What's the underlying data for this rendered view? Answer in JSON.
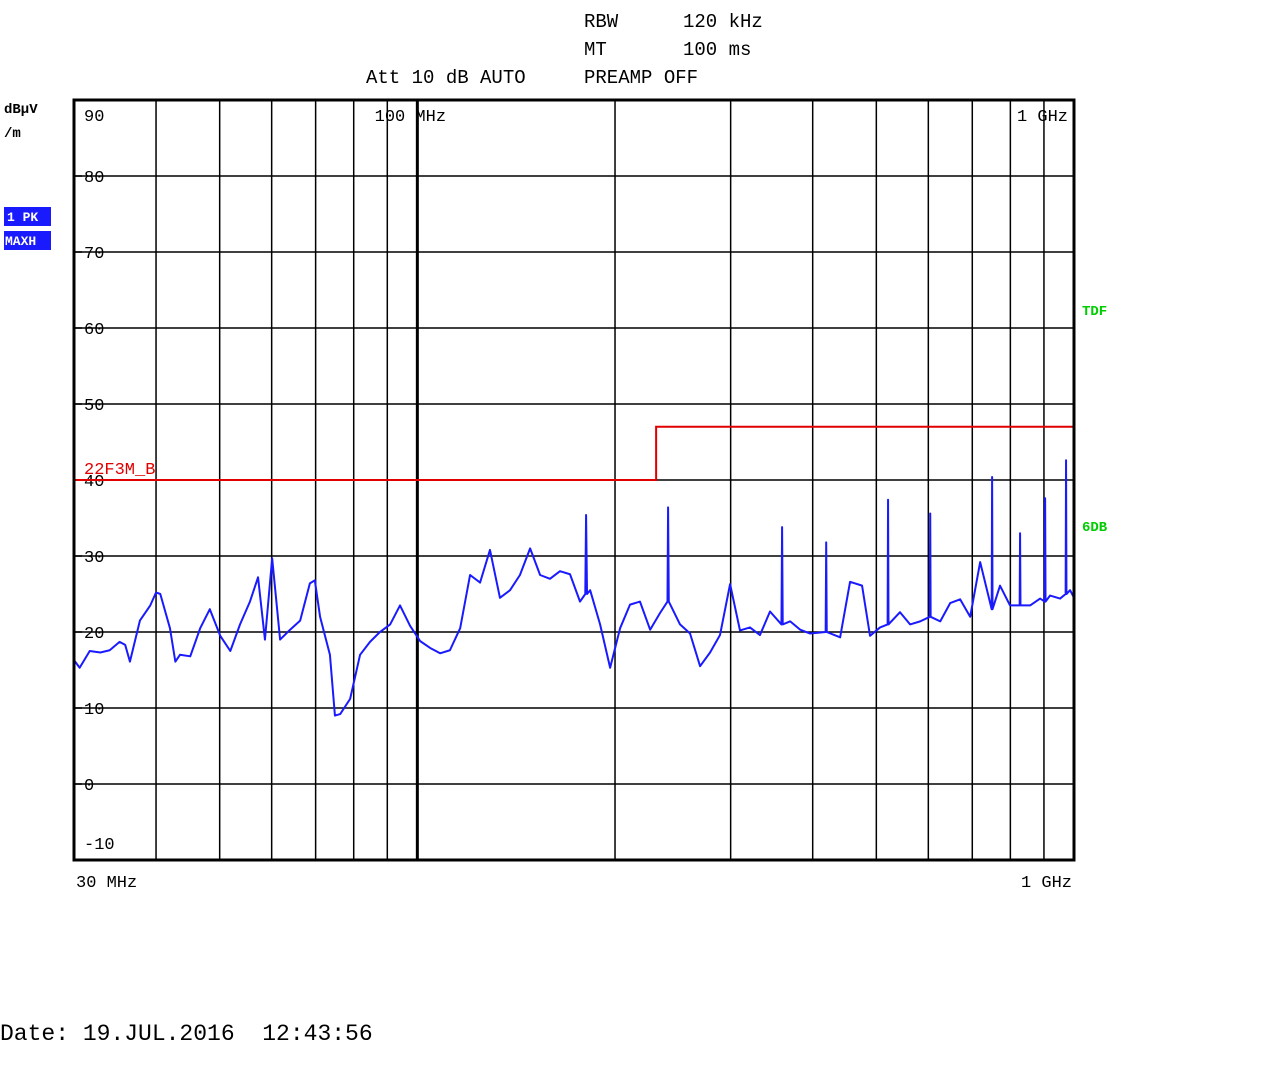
{
  "chart_data": {
    "type": "line",
    "annotations": {
      "rbw_label": "RBW",
      "rbw": "120 kHz",
      "mt_label": "MT",
      "mt": "100 ms",
      "att": "Att 10 dB AUTO",
      "preamp": "PREAMP OFF",
      "right_top": "TDF",
      "right_mid": "6DB",
      "date": "Date: 19.JUL.2016  12:43:56"
    },
    "ylabel_lines": [
      "dBµV",
      "/m"
    ],
    "xscale": "log",
    "xlim": [
      30,
      1000
    ],
    "ylim": [
      -10,
      90
    ],
    "yticks": [
      90,
      80,
      70,
      60,
      50,
      40,
      30,
      20,
      10,
      0,
      -10
    ],
    "xticks": [
      {
        "value": 30,
        "label": "30 MHz"
      },
      {
        "value": 1000,
        "label": "1 GHz"
      }
    ],
    "top_xticks": [
      {
        "value": 100,
        "label": "100 MHz"
      },
      {
        "value": 1000,
        "label": "1 GHz"
      }
    ],
    "xgrid": [
      40,
      50,
      60,
      70,
      80,
      90,
      100,
      200,
      300,
      400,
      500,
      600,
      700,
      800,
      900
    ],
    "display_line_x": 100,
    "grid": true,
    "x": [
      30.0,
      30.6,
      31.7,
      32.9,
      34.0,
      35.2,
      35.9,
      36.5,
      37.8,
      39.2,
      40.0,
      40.6,
      42.0,
      42.8,
      43.5,
      45.1,
      46.7,
      48.3,
      50.1,
      51.9,
      53.7,
      55.6,
      57.2,
      58.6,
      60.1,
      61.8,
      64.0,
      66.3,
      68.6,
      69.8,
      71.1,
      73.6,
      74.9,
      76.3,
      79.0,
      81.8,
      84.7,
      87.7,
      90.9,
      94.1,
      97.5,
      101.0,
      104.6,
      108.3,
      112.1,
      116.2,
      120.3,
      124.6,
      129.0,
      133.6,
      138.4,
      143.3,
      148.5,
      153.8,
      159.2,
      164.9,
      170.8,
      176.9,
      180.2,
      180.7,
      181.3,
      183.3,
      189.8,
      196.6,
      203.6,
      210.8,
      218.3,
      226.2,
      234.2,
      240.4,
      240.9,
      241.5,
      251.2,
      260.2,
      269.5,
      279.1,
      289.0,
      299.4,
      310.0,
      321.0,
      332.5,
      344.4,
      358.5,
      359.3,
      360.1,
      369.7,
      382.9,
      396.4,
      418.6,
      419.4,
      420.2,
      440.4,
      456.0,
      475.6,
      489.1,
      506.6,
      520.2,
      521.0,
      521.8,
      543.3,
      562.8,
      583.1,
      603.1,
      604.0,
      604.9,
      625.6,
      647.8,
      670.9,
      694.8,
      719.6,
      749.3,
      750.4,
      751.5,
      771.5,
      799.1,
      826.5,
      827.7,
      828.9,
      857.4,
      888.0,
      902.4,
      903.7,
      905.0,
      919.6,
      952.4,
      971.1,
      972.5,
      973.9,
      986.4,
      1000.0
    ],
    "series": [
      {
        "name": "1 PK",
        "mode": "MAXH",
        "color": "#1a1aff",
        "values": [
          16.3,
          15.3,
          17.5,
          17.3,
          17.6,
          18.7,
          18.3,
          16.1,
          21.5,
          23.5,
          25.2,
          25.0,
          20.5,
          16.1,
          17.0,
          16.8,
          20.5,
          23.0,
          19.5,
          17.5,
          21.0,
          24.0,
          27.2,
          19.0,
          29.7,
          19.0,
          20.3,
          21.5,
          26.4,
          26.8,
          22.0,
          17.0,
          9.0,
          9.2,
          11.2,
          17.0,
          18.7,
          20.0,
          21.0,
          23.5,
          20.8,
          18.8,
          17.9,
          17.2,
          17.6,
          20.5,
          27.5,
          26.5,
          30.8,
          24.5,
          25.5,
          27.5,
          31.0,
          27.5,
          27.0,
          28.0,
          27.6,
          24.0,
          25.0,
          35.4,
          25.0,
          25.5,
          21.0,
          15.3,
          20.5,
          23.6,
          24.0,
          20.3,
          22.5,
          24.0,
          36.4,
          24.0,
          21.0,
          19.8,
          15.5,
          17.3,
          19.6,
          26.3,
          20.2,
          20.6,
          19.6,
          22.7,
          21.0,
          33.8,
          21.0,
          21.4,
          20.3,
          19.8,
          20.0,
          31.8,
          20.0,
          19.3,
          26.6,
          26.1,
          19.5,
          20.6,
          21.0,
          37.4,
          21.0,
          22.6,
          21.0,
          21.4,
          22.0,
          35.6,
          22.0,
          21.4,
          23.8,
          24.3,
          22.0,
          29.2,
          23.0,
          40.4,
          23.0,
          26.1,
          23.5,
          23.5,
          33.0,
          23.5,
          23.5,
          24.4,
          24.0,
          37.6,
          24.0,
          24.8,
          24.4,
          25.0,
          42.6,
          25.0,
          25.5,
          24.5
        ]
      }
    ],
    "limit_line": {
      "name": "22F3M_B",
      "color": "#e00000",
      "x": [
        30,
        231,
        231,
        1000
      ],
      "values": [
        40,
        40,
        47,
        47
      ]
    },
    "label_color": "#00cc00",
    "badge_color": "#1a1aff"
  }
}
